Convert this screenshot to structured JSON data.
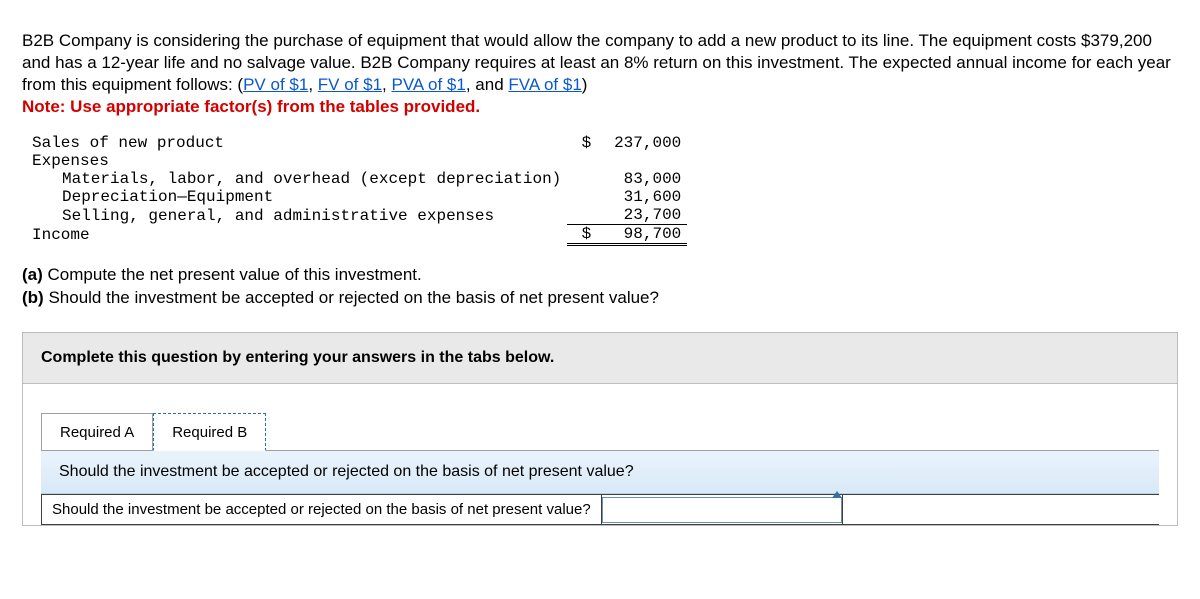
{
  "intro": {
    "text_before_links": "B2B Company is considering the purchase of the equipment that would allow the company to add a new product to its line. The equipment costs $379,200 and has a 12-year life and no salvage value. B2B Company requires at least an 8% return on this investment. The expected annual income for each year from this equipment follows: (",
    "links": [
      "PV of $1",
      "FV of $1",
      "PVA of $1",
      "FVA of $1"
    ],
    "note": "Note: Use appropriate factor(s) from the tables provided."
  },
  "income_statement": {
    "rows": [
      {
        "label": "Sales of new product",
        "indent": false,
        "dollar": "$",
        "value": "237,000",
        "cls": ""
      },
      {
        "label": "Expenses",
        "indent": false,
        "dollar": "",
        "value": "",
        "cls": ""
      },
      {
        "label": "Materials, labor, and overhead (except depreciation)",
        "indent": true,
        "dollar": "",
        "value": "83,000",
        "cls": ""
      },
      {
        "label": "Depreciation—Equipment",
        "indent": true,
        "dollar": "",
        "value": "31,600",
        "cls": ""
      },
      {
        "label": "Selling, general, and administrative expenses",
        "indent": true,
        "dollar": "",
        "value": "23,700",
        "cls": "ul"
      },
      {
        "label": "Income",
        "indent": false,
        "dollar": "$",
        "value": "98,700",
        "cls": "total"
      }
    ]
  },
  "questions": {
    "a": "(a) Compute the net present value of this investment.",
    "b": "(b) Should the investment be accepted or rejected on the basis of net present value?"
  },
  "answer_box": {
    "instruction": "Complete this question by entering your answers in the tabs below.",
    "tabs": {
      "a": "Required A",
      "b": "Required B"
    },
    "active_tab": "b",
    "panel_heading": "Should the investment be accepted or rejected on the basis of net present value?",
    "row_label": "Should the investment be accepted or rejected on the basis of net present value?",
    "select_value": ""
  },
  "colors": {
    "link": "#0b57d0",
    "note": "#d40000",
    "instruct_bg": "#e9e9e9",
    "panel_bg_top": "#eaf3fb",
    "panel_bg_bottom": "#d8e9f7",
    "tab_active_border": "#2b6cb0"
  }
}
